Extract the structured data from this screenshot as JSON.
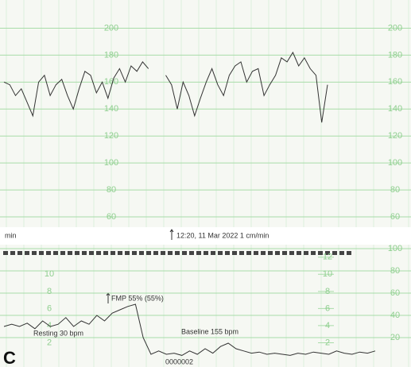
{
  "panel_label": "C",
  "chart_data": [
    {
      "type": "line",
      "color": "#333333",
      "grid": true,
      "ylim": [
        50,
        215
      ],
      "yticks": [
        60,
        80,
        100,
        120,
        140,
        160,
        180,
        200
      ],
      "annotations": [
        "min",
        "12:20, 11 Mar 2022  1 cm/min"
      ],
      "values": [
        160,
        158,
        150,
        155,
        145,
        135,
        160,
        165,
        150,
        158,
        162,
        150,
        140,
        155,
        168,
        165,
        152,
        160,
        148,
        163,
        170,
        160,
        172,
        168,
        175,
        170,
        null,
        null,
        165,
        158,
        140,
        160,
        150,
        135,
        148,
        160,
        170,
        158,
        150,
        165,
        172,
        175,
        160,
        168,
        170,
        150,
        158,
        165,
        178,
        175,
        182,
        172,
        178,
        170,
        165,
        130,
        158
      ]
    },
    {
      "type": "line",
      "color": "#333333",
      "grid": true,
      "ylim": [
        0,
        100
      ],
      "yticks": [
        20,
        40,
        60,
        80,
        100
      ],
      "y2lim": [
        0,
        13
      ],
      "y2ticks": [
        12,
        10,
        8,
        6,
        4,
        2
      ],
      "annotations": [
        "FMP 55% (55%)",
        "Resting 30 bpm",
        "Baseline 155 bpm",
        "0000002"
      ],
      "values": [
        30,
        32,
        30,
        33,
        28,
        35,
        30,
        32,
        38,
        30,
        35,
        32,
        40,
        35,
        42,
        45,
        48,
        50,
        20,
        5,
        8,
        5,
        6,
        4,
        8,
        5,
        10,
        6,
        12,
        15,
        10,
        8,
        6,
        7,
        5,
        6,
        5,
        4,
        6,
        5,
        7,
        6,
        5,
        8,
        6,
        5,
        7,
        6,
        8
      ]
    }
  ]
}
